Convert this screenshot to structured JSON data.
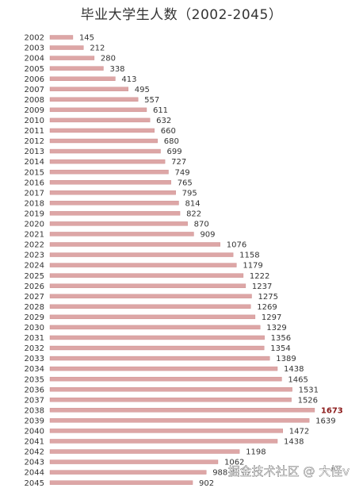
{
  "chart_data": {
    "type": "bar",
    "orientation": "horizontal",
    "title": "毕业大学生人数（2002-2045）",
    "categories": [
      "2002",
      "2003",
      "2004",
      "2005",
      "2006",
      "2007",
      "2008",
      "2009",
      "2010",
      "2011",
      "2012",
      "2013",
      "2014",
      "2015",
      "2016",
      "2017",
      "2018",
      "2019",
      "2020",
      "2021",
      "2022",
      "2023",
      "2024",
      "2025",
      "2026",
      "2027",
      "2028",
      "2029",
      "2030",
      "2031",
      "2032",
      "2033",
      "2034",
      "2035",
      "2036",
      "2037",
      "2038",
      "2039",
      "2040",
      "2041",
      "2042",
      "2043",
      "2044",
      "2045"
    ],
    "values": [
      145,
      212,
      280,
      338,
      413,
      495,
      557,
      611,
      632,
      660,
      680,
      699,
      727,
      749,
      765,
      795,
      814,
      822,
      870,
      909,
      1076,
      1158,
      1179,
      1222,
      1237,
      1275,
      1269,
      1297,
      1329,
      1356,
      1354,
      1389,
      1438,
      1465,
      1531,
      1526,
      1673,
      1639,
      1472,
      1438,
      1198,
      1062,
      988,
      902
    ],
    "value_labels": [
      "145",
      "212",
      "280",
      "338",
      "413",
      "495",
      "557",
      "611",
      "632",
      "660",
      "680",
      "699",
      "727",
      "749",
      "765",
      "795",
      "814",
      "822",
      "870",
      "909",
      "1076",
      "1158",
      "1179",
      "1222",
      "1237",
      "1275",
      "1269",
      "1297",
      "1329",
      "1356",
      "1354",
      "1389",
      "1438",
      "1465",
      "1531",
      "1526",
      "1673",
      "1639",
      "1472",
      "1438",
      "1198",
      "1062",
      "988",
      "902"
    ],
    "highlight": "2038",
    "xlabel": "",
    "ylabel": "",
    "grid": false,
    "legend": "none"
  },
  "colors": {
    "bar": "#dda6a6",
    "bar_dark": "#c98a8a",
    "text": "#333333",
    "highlight_text": "#8b1a1a",
    "background": "#ffffff"
  },
  "watermark": "掘金技术社区 @ 大怪v"
}
